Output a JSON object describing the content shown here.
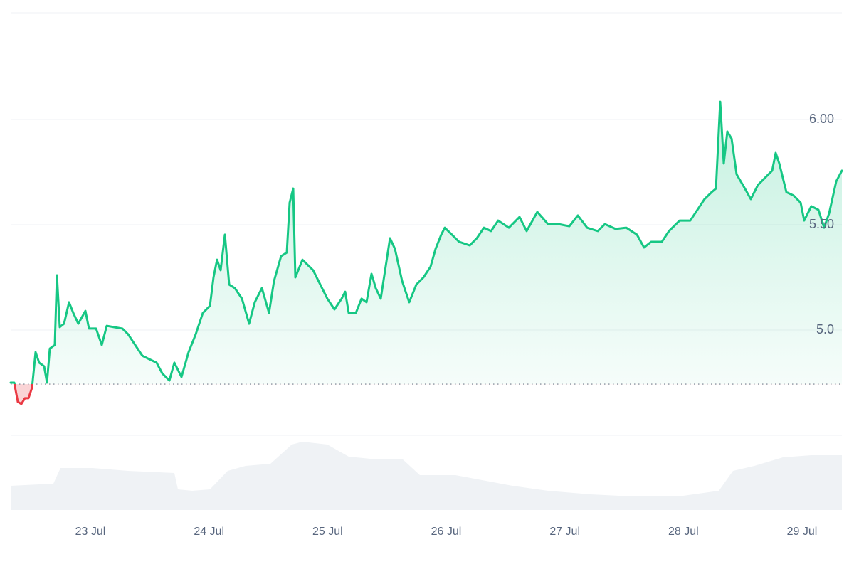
{
  "chart_data": {
    "type": "line",
    "xlim": [
      22.328,
      29.336
    ],
    "xticks": [
      {
        "value": 23,
        "label": "23 Jul"
      },
      {
        "value": 24,
        "label": "24 Jul"
      },
      {
        "value": 25,
        "label": "25 Jul"
      },
      {
        "value": 26,
        "label": "26 Jul"
      },
      {
        "value": 27,
        "label": "27 Jul"
      },
      {
        "value": 28,
        "label": "28 Jul"
      },
      {
        "value": 29,
        "label": "29 Jul"
      }
    ],
    "ylim": [
      4.5,
      6.5
    ],
    "yticks": [
      {
        "value": 5,
        "label": "5.0"
      },
      {
        "value": 5.5,
        "label": "5.50"
      },
      {
        "value": 6,
        "label": "6.00"
      }
    ],
    "y2lim": [
      0,
      100
    ],
    "grid": true,
    "baseline": 4.743,
    "series": [
      {
        "color": "#16c784",
        "down_color": "#ea3943",
        "x": [
          22.328,
          22.358,
          22.388,
          22.418,
          22.448,
          22.478,
          22.508,
          22.538,
          22.568,
          22.61,
          22.634,
          22.658,
          22.7,
          22.718,
          22.742,
          22.778,
          22.82,
          22.856,
          22.898,
          22.958,
          22.988,
          23.048,
          23.096,
          23.138,
          23.198,
          23.27,
          23.318,
          23.378,
          23.438,
          23.498,
          23.558,
          23.606,
          23.666,
          23.708,
          23.768,
          23.828,
          23.888,
          23.948,
          24.008,
          24.038,
          24.068,
          24.098,
          24.134,
          24.17,
          24.218,
          24.278,
          24.338,
          24.386,
          24.446,
          24.506,
          24.548,
          24.608,
          24.656,
          24.68,
          24.71,
          24.728,
          24.788,
          24.878,
          24.938,
          24.998,
          25.058,
          25.118,
          25.148,
          25.178,
          25.238,
          25.286,
          25.328,
          25.37,
          25.406,
          25.448,
          25.526,
          25.568,
          25.628,
          25.688,
          25.748,
          25.808,
          25.868,
          25.91,
          25.958,
          25.988,
          26.048,
          26.108,
          26.198,
          26.258,
          26.318,
          26.378,
          26.438,
          26.528,
          26.618,
          26.678,
          26.768,
          26.858,
          26.948,
          27.038,
          27.11,
          27.188,
          27.278,
          27.338,
          27.428,
          27.518,
          27.608,
          27.668,
          27.728,
          27.818,
          27.878,
          27.968,
          28.058,
          28.118,
          28.178,
          28.238,
          28.274,
          28.31,
          28.34,
          28.37,
          28.406,
          28.448,
          28.508,
          28.568,
          28.628,
          28.688,
          28.748,
          28.778,
          28.808,
          28.868,
          28.928,
          28.988,
          29.018,
          29.078,
          29.138,
          29.186,
          29.228,
          29.288,
          29.336
        ],
        "values": [
          4.75,
          4.75,
          4.659,
          4.649,
          4.676,
          4.676,
          4.726,
          4.895,
          4.845,
          4.828,
          4.75,
          4.912,
          4.929,
          5.26,
          5.014,
          5.03,
          5.132,
          5.081,
          5.03,
          5.091,
          5.007,
          5.007,
          4.929,
          5.02,
          5.014,
          5.007,
          4.98,
          4.929,
          4.878,
          4.861,
          4.845,
          4.794,
          4.76,
          4.845,
          4.777,
          4.895,
          4.98,
          5.081,
          5.115,
          5.25,
          5.334,
          5.284,
          5.453,
          5.216,
          5.199,
          5.149,
          5.03,
          5.132,
          5.199,
          5.081,
          5.233,
          5.351,
          5.368,
          5.605,
          5.672,
          5.25,
          5.334,
          5.284,
          5.216,
          5.149,
          5.098,
          5.149,
          5.182,
          5.081,
          5.081,
          5.149,
          5.132,
          5.267,
          5.199,
          5.149,
          5.436,
          5.385,
          5.233,
          5.132,
          5.216,
          5.25,
          5.301,
          5.385,
          5.453,
          5.486,
          5.453,
          5.419,
          5.402,
          5.436,
          5.486,
          5.47,
          5.52,
          5.486,
          5.537,
          5.47,
          5.561,
          5.503,
          5.503,
          5.493,
          5.544,
          5.486,
          5.47,
          5.503,
          5.48,
          5.486,
          5.453,
          5.392,
          5.419,
          5.419,
          5.47,
          5.52,
          5.52,
          5.571,
          5.622,
          5.655,
          5.672,
          6.084,
          5.791,
          5.943,
          5.909,
          5.74,
          5.682,
          5.622,
          5.689,
          5.723,
          5.757,
          5.841,
          5.791,
          5.655,
          5.639,
          5.605,
          5.52,
          5.588,
          5.571,
          5.486,
          5.554,
          5.706,
          5.757
        ]
      },
      {
        "axis": "y2",
        "color": "#eff2f5",
        "x": [
          22.328,
          22.688,
          22.748,
          23.018,
          23.318,
          23.708,
          23.738,
          23.858,
          24.008,
          24.158,
          24.308,
          24.518,
          24.698,
          24.788,
          24.998,
          25.178,
          25.358,
          25.628,
          25.778,
          26.078,
          26.558,
          26.858,
          27.218,
          27.578,
          27.998,
          28.298,
          28.418,
          28.598,
          28.838,
          29.078,
          29.336
        ],
        "values": [
          32.4,
          35.2,
          56.2,
          56.2,
          52.4,
          49.5,
          27.6,
          25.7,
          27.6,
          52.4,
          59.0,
          61.9,
          87.6,
          91.4,
          87.6,
          71.4,
          68.6,
          68.6,
          46.7,
          46.7,
          32.4,
          25.7,
          21.0,
          18.1,
          19.0,
          25.7,
          52.4,
          59.0,
          70.5,
          73.3,
          73.3
        ]
      }
    ]
  }
}
